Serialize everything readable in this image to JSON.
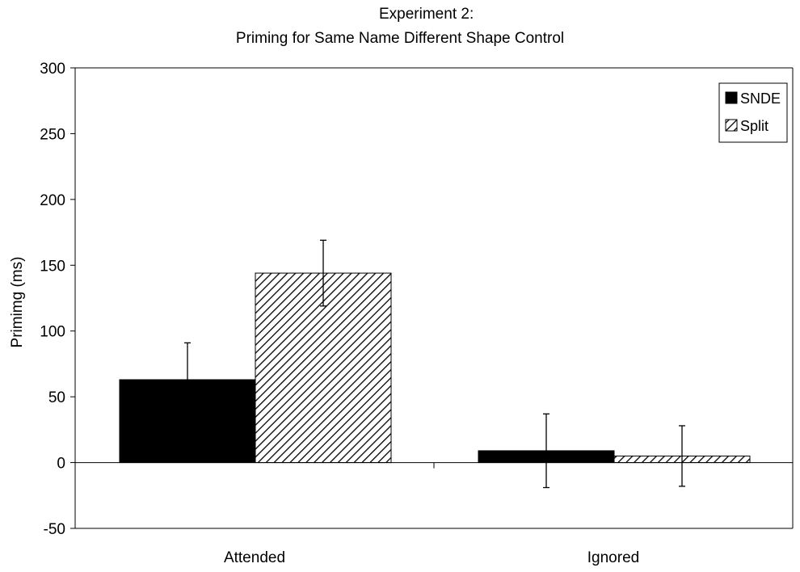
{
  "chart_data": {
    "type": "bar",
    "title": "Experiment 2:",
    "subtitle": "Priming for Same Name Different Shape Control",
    "xlabel": "",
    "ylabel": "Primimg (ms)",
    "ylim": [
      -50,
      300
    ],
    "yticks": [
      "300",
      "250",
      "200",
      "150",
      "100",
      "50",
      "0",
      "-50"
    ],
    "categories": [
      "Attended",
      "Ignored"
    ],
    "series": [
      {
        "name": "SNDE",
        "color": "#000000",
        "pattern": "solid",
        "values": [
          63,
          9
        ],
        "error": [
          28,
          28
        ]
      },
      {
        "name": "Split",
        "color": "#000000",
        "pattern": "diagonal-hatch",
        "values": [
          144,
          5
        ],
        "error": [
          25,
          23
        ]
      }
    ],
    "grid": false,
    "legend_position": "top-right"
  }
}
